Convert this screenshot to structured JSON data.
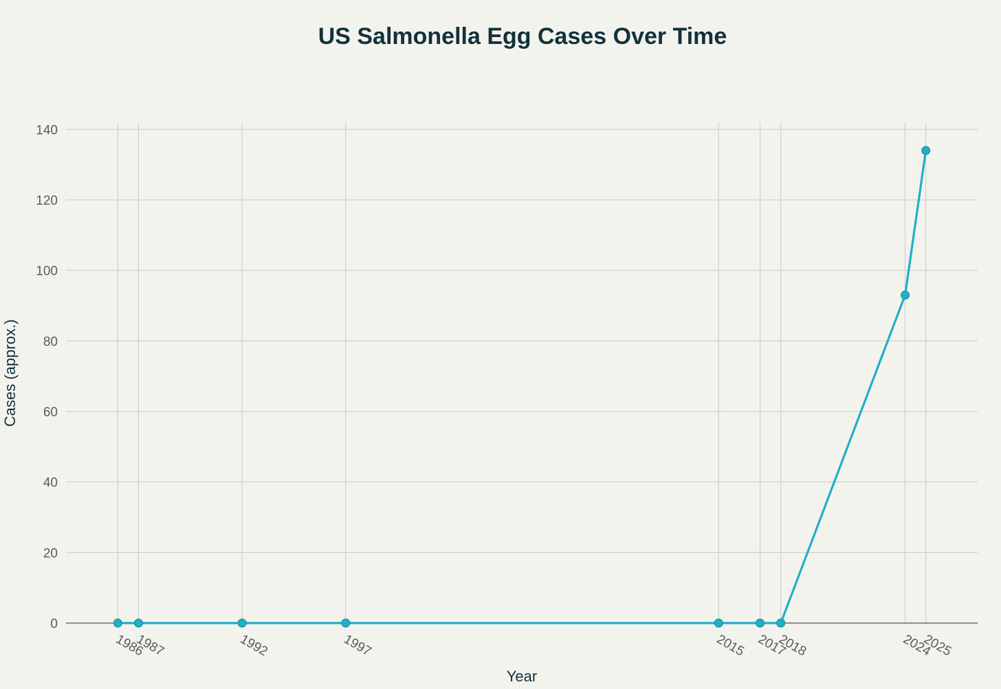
{
  "chart_data": {
    "type": "line",
    "title": "US Salmonella Egg Cases Over Time",
    "xlabel": "Year",
    "ylabel": "Cases (approx.)",
    "x": [
      1986,
      1987,
      1992,
      1997,
      2015,
      2017,
      2018,
      2024,
      2025
    ],
    "series": [
      {
        "values": [
          0,
          0,
          0,
          0,
          0,
          0,
          0,
          93,
          134
        ],
        "color": "#1fb0c6"
      }
    ],
    "xlim": [
      1983.5,
      2027.5
    ],
    "ylim": [
      0,
      142
    ],
    "yticks": [
      0,
      20,
      40,
      60,
      80,
      100,
      120,
      140
    ],
    "xticks": [
      1986,
      1987,
      1992,
      1997,
      2015,
      2017,
      2018,
      2024,
      2025
    ],
    "grid": true,
    "legend": "none"
  }
}
